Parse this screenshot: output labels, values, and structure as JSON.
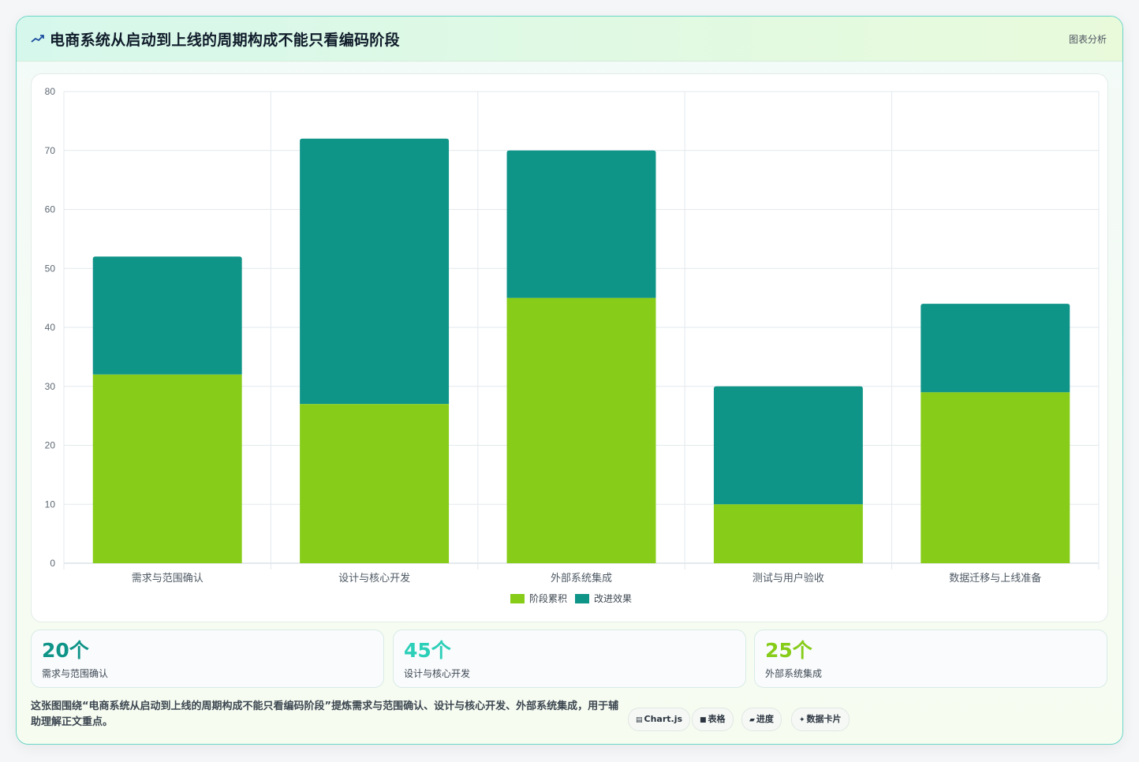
{
  "header": {
    "title": "电商系统从启动到上线的周期构成不能只看编码阶段",
    "link_label": "图表分析"
  },
  "colors": {
    "series_1": "#86cc18",
    "series_2": "#0f9488",
    "stat_1": "#0f9488",
    "stat_2": "#2ccfb8",
    "stat_3": "#86cc18"
  },
  "chart_data": {
    "type": "bar",
    "stacked": true,
    "categories": [
      "需求与范围确认",
      "设计与核心开发",
      "外部系统集成",
      "测试与用户验收",
      "数据迁移与上线准备"
    ],
    "series": [
      {
        "name": "阶段累积",
        "values": [
          32,
          27,
          45,
          10,
          29
        ]
      },
      {
        "name": "改进效果",
        "values": [
          20,
          45,
          25,
          20,
          15
        ]
      }
    ],
    "ylim": [
      0,
      80
    ],
    "yticks": [
      0,
      10,
      20,
      30,
      40,
      50,
      60,
      70,
      80
    ],
    "grid": true,
    "legend_position": "bottom"
  },
  "stats": [
    {
      "value": "20个",
      "label": "需求与范围确认"
    },
    {
      "value": "45个",
      "label": "设计与核心开发"
    },
    {
      "value": "25个",
      "label": "外部系统集成"
    }
  ],
  "footer": {
    "description": "这张图围绕“电商系统从启动到上线的周期构成不能只看编码阶段”提炼需求与范围确认、设计与核心开发、外部系统集成，用于辅助理解正文重点。",
    "chips": [
      {
        "icon": "chart-icon",
        "glyph": "▤",
        "label": "Chart.js"
      },
      {
        "icon": "table-icon",
        "glyph": "■",
        "label": "表格"
      },
      {
        "icon": "progress-icon",
        "glyph": "▰",
        "label": "进度"
      },
      {
        "icon": "sparkle-icon",
        "glyph": "✦",
        "label": "数据卡片"
      }
    ]
  }
}
